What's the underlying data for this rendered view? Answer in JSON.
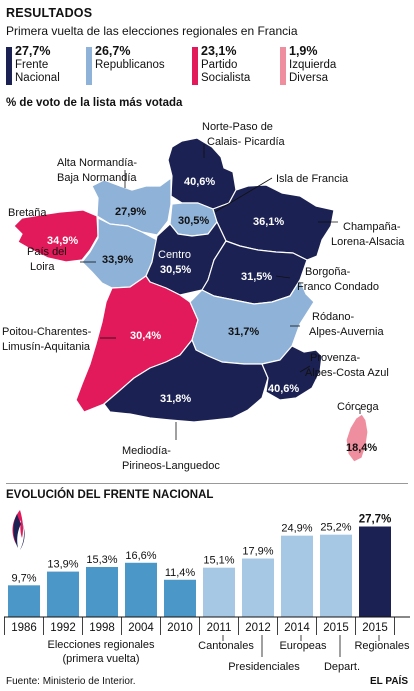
{
  "header": {
    "title": "RESULTADOS",
    "subtitle": "Primera vuelta de las elecciones regionales en Francia"
  },
  "legend": [
    {
      "pct": "27,7%",
      "label": "Frente Nacional",
      "line1": "Frente",
      "line2": "Nacional",
      "color": "#1b2152"
    },
    {
      "pct": "26,7%",
      "label": "Republicanos",
      "line1": "Republicanos",
      "line2": "",
      "color": "#8fb2d8"
    },
    {
      "pct": "23,1%",
      "label": "Partido Socialista",
      "line1": "Partido",
      "line2": "Socialista",
      "color": "#e2195a"
    },
    {
      "pct": "1,9%",
      "label": "Izquierda Diversa",
      "line1": "Izquierda",
      "line2": "Diversa",
      "color": "#ef8e9e"
    }
  ],
  "map_section": {
    "heading": "% de voto de la lista más votada",
    "regions": [
      {
        "name": "Norte-Paso de Calais- Picardía",
        "value": "40,6%",
        "party": "FN"
      },
      {
        "name": "Isla de Francia",
        "value": "30,5%",
        "party": "LR"
      },
      {
        "name": "Alta Normandía- Baja Normandía",
        "value": "27,9%",
        "party": "LR"
      },
      {
        "name": "Champaña- Lorena-Alsacia",
        "value": "36,1%",
        "party": "FN"
      },
      {
        "name": "Bretaña",
        "value": "34,9%",
        "party": "PS"
      },
      {
        "name": "País del Loira",
        "value": "33,9%",
        "party": "LR"
      },
      {
        "name": "Centro",
        "value": "30,5%",
        "party": "FN"
      },
      {
        "name": "Borgoña- Franco Condado",
        "value": "31,5%",
        "party": "FN"
      },
      {
        "name": "Poitou-Charentes- Limusín-Aquitania",
        "value": "30,4%",
        "party": "PS"
      },
      {
        "name": "Ródano- Alpes-Auvernia",
        "value": "31,7%",
        "party": "LR"
      },
      {
        "name": "Provenza- Alpes-Costa Azul",
        "value": "40,6%",
        "party": "FN"
      },
      {
        "name": "Mediodía- Pirineos-Languedoc",
        "value": "31,8%",
        "party": "FN"
      },
      {
        "name": "Córcega",
        "value": "18,4%",
        "party": "DVG"
      }
    ],
    "labels": {
      "norte_1": "Norte-Paso de",
      "norte_2": "Calais- Picardía",
      "isla": "Isla de Francia",
      "normandia_1": "Alta Normandía-",
      "normandia_2": "Baja Normandía",
      "champana_1": "Champaña-",
      "champana_2": "Lorena-Alsacia",
      "bretana": "Bretaña",
      "loira_1": "País del",
      "loira_2": "Loira",
      "centro": "Centro",
      "borgona_1": "Borgoña-",
      "borgona_2": "Franco Condado",
      "poitou_1": "Poitou-Charentes-",
      "poitou_2": "Limusín-Aquitania",
      "rodano_1": "Ródano-",
      "rodano_2": "Alpes-Auvernia",
      "provenza_1": "Provenza-",
      "provenza_2": "Alpes-Costa Azul",
      "mediodia_1": "Mediodía-",
      "mediodia_2": "Pirineos-Languedoc",
      "corcega": "Córcega"
    },
    "colors": {
      "FN": "#1b2152",
      "LR": "#8fb2d8",
      "PS": "#e2195a",
      "DVG": "#ef8e9e"
    }
  },
  "chart_data": {
    "type": "bar",
    "title": "EVOLUCIÓN DEL FRENTE NACIONAL",
    "categories": [
      "1986",
      "1992",
      "1998",
      "2004",
      "2010",
      "2011",
      "2012",
      "2014",
      "2015",
      "2015"
    ],
    "values": [
      9.7,
      13.9,
      15.3,
      16.6,
      11.4,
      15.1,
      17.9,
      24.9,
      25.2,
      27.7
    ],
    "value_labels": [
      "9,7%",
      "13,9%",
      "15,3%",
      "16,6%",
      "11,4%",
      "15,1%",
      "17,9%",
      "24,9%",
      "25,2%",
      "27,7%"
    ],
    "election_types": [
      "Elecciones regionales (primera vuelta)",
      "Elecciones regionales (primera vuelta)",
      "Elecciones regionales (primera vuelta)",
      "Elecciones regionales (primera vuelta)",
      "Elecciones regionales (primera vuelta)",
      "Cantonales",
      "Presidenciales",
      "Europeas",
      "Depart.",
      "Regionales"
    ],
    "group_labels": {
      "regionales_1": "Elecciones regionales",
      "regionales_2": "(primera vuelta)",
      "cantonales": "Cantonales",
      "presidenciales": "Presidenciales",
      "europeas": "Europeas",
      "depart": "Depart.",
      "regionales": "Regionales"
    },
    "colors": {
      "regionales_hist": "#4a97c8",
      "other": "#a6c8e4",
      "latest": "#1b2152"
    },
    "ylim": [
      0,
      30
    ],
    "grid": false,
    "legend": "none"
  },
  "footer": {
    "source": "Fuente: Ministerio de Interior.",
    "credit": "EL PAÍS"
  }
}
